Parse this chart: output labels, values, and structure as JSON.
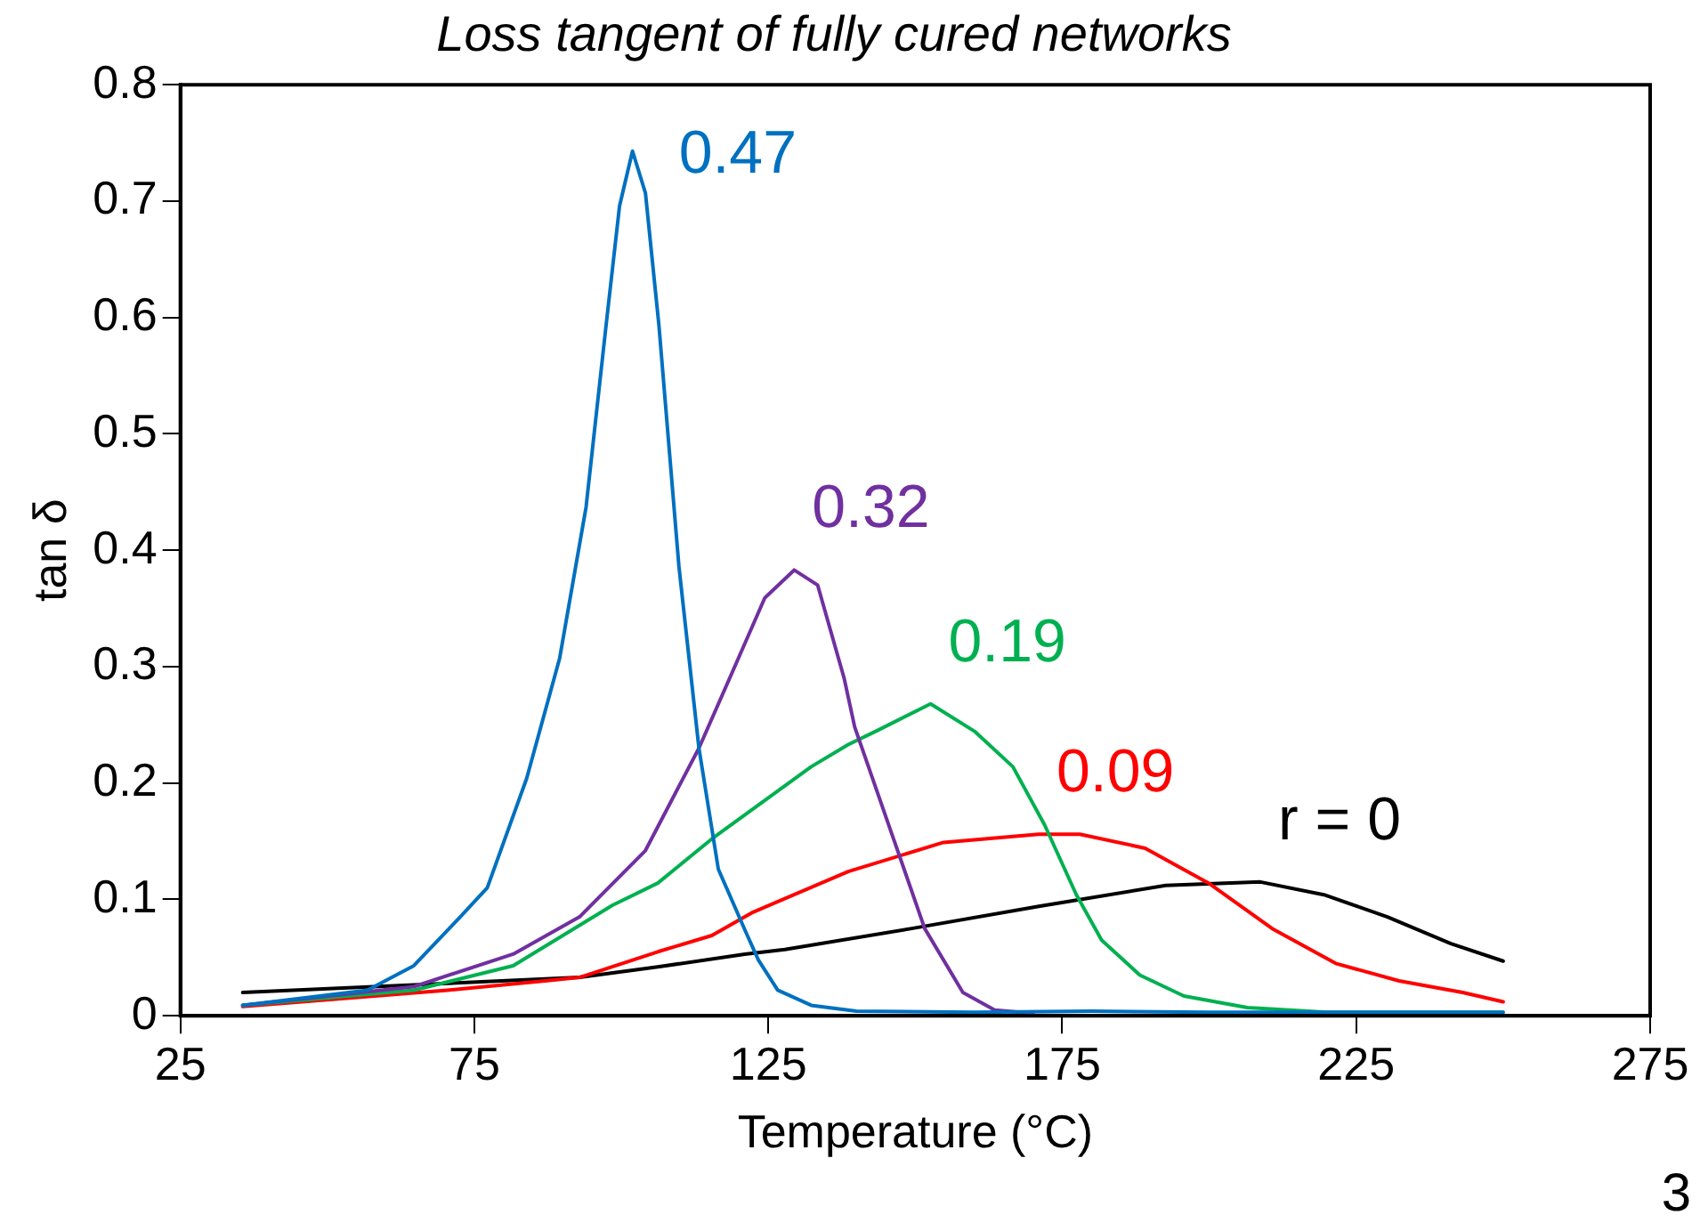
{
  "chart_data": {
    "type": "line",
    "title": "Loss tangent of fully cured networks",
    "xlabel": "Temperature (°C)",
    "ylabel": "tan δ",
    "xlim": [
      25,
      275
    ],
    "xticks": [
      25,
      75,
      125,
      175,
      225,
      275
    ],
    "ylim": [
      0,
      0.8
    ],
    "yticks": [
      0,
      0.1,
      0.2,
      0.3,
      0.4,
      0.5,
      0.6,
      0.7,
      0.8
    ],
    "grid": false,
    "legend": false,
    "marker": "none",
    "line_style": "solid",
    "annotations": [
      "3"
    ],
    "series": [
      {
        "name": "0.47",
        "color": "#0070c0",
        "x": [
          35.6,
          56.8,
          64.7,
          72.6,
          77.2,
          83.9,
          89.5,
          94.0,
          97.4,
          99.7,
          101.9,
          104.1,
          106.4,
          109.8,
          113.2,
          116.5,
          121.0,
          123.3,
          126.6,
          132.3,
          140,
          160,
          180,
          200,
          220,
          250
        ],
        "values": [
          0.009,
          0.022,
          0.043,
          0.085,
          0.11,
          0.204,
          0.307,
          0.437,
          0.593,
          0.696,
          0.743,
          0.707,
          0.593,
          0.386,
          0.23,
          0.126,
          0.074,
          0.048,
          0.022,
          0.009,
          0.004,
          0.003,
          0.004,
          0.003,
          0.003,
          0.003
        ]
      },
      {
        "name": "0.32",
        "color": "#7030a0",
        "x": [
          35.6,
          64.7,
          81.6,
          92.9,
          104.1,
          113.2,
          119.9,
          124.4,
          129.4,
          133.4,
          137.9,
          139.7,
          146.1,
          151.6,
          158.1,
          163.5,
          170
        ],
        "values": [
          0.009,
          0.025,
          0.053,
          0.085,
          0.142,
          0.23,
          0.307,
          0.359,
          0.383,
          0.37,
          0.29,
          0.248,
          0.155,
          0.075,
          0.02,
          0.005,
          0.002
        ]
      },
      {
        "name": "0.19",
        "color": "#00b050",
        "x": [
          35.6,
          64.7,
          81.6,
          98.5,
          106.2,
          115.4,
          132.3,
          138.6,
          143.5,
          152.6,
          160.2,
          166.6,
          172.0,
          177.4,
          181.7,
          188.2,
          195.7,
          206.5,
          220,
          250
        ],
        "values": [
          0.009,
          0.022,
          0.043,
          0.095,
          0.114,
          0.152,
          0.214,
          0.233,
          0.245,
          0.268,
          0.244,
          0.214,
          0.164,
          0.104,
          0.065,
          0.035,
          0.017,
          0.007,
          0.003,
          0.003
        ]
      },
      {
        "name": "0.09",
        "color": "#ff0000",
        "x": [
          35.6,
          70.4,
          87,
          92.9,
          106.2,
          115.4,
          122.4,
          138.6,
          154.8,
          171,
          178,
          189.1,
          199.9,
          210.7,
          221.5,
          232.3,
          243.1,
          250
        ],
        "values": [
          0.008,
          0.022,
          0.03,
          0.033,
          0.055,
          0.069,
          0.089,
          0.124,
          0.149,
          0.156,
          0.156,
          0.144,
          0.114,
          0.075,
          0.045,
          0.03,
          0.02,
          0.012
        ]
      },
      {
        "name": "r = 0",
        "color": "#000000",
        "x": [
          35.6,
          92.9,
          106.2,
          121,
          127.8,
          149.4,
          171,
          192.6,
          208.7,
          219.5,
          230.3,
          241.1,
          250
        ],
        "values": [
          0.02,
          0.033,
          0.042,
          0.053,
          0.057,
          0.075,
          0.094,
          0.112,
          0.115,
          0.104,
          0.085,
          0.062,
          0.047
        ]
      }
    ]
  }
}
